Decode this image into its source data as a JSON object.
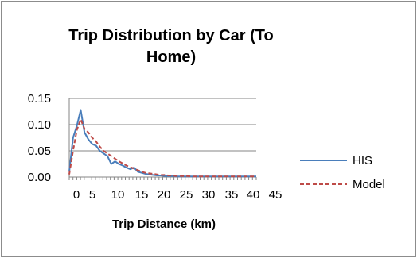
{
  "chart_data": {
    "type": "line",
    "title_lines": [
      "Trip Distribution by Car (To",
      "Home)"
    ],
    "xlabel": "Trip Distance (km)",
    "ylabel": "",
    "x_tick_labels": [
      "0",
      "5",
      "10",
      "15",
      "20",
      "25",
      "30",
      "35",
      "40",
      "45"
    ],
    "y_tick_labels": [
      "0.00",
      "0.05",
      "0.10",
      "0.15"
    ],
    "ylim": [
      0,
      0.15
    ],
    "xlim": [
      0,
      49
    ],
    "grid": "horizontal",
    "legend_position": "right",
    "series": [
      {
        "name": "HIS",
        "color": "#4a7ebb",
        "style": "solid",
        "x": [
          0,
          1,
          2,
          3,
          4,
          5,
          6,
          7,
          8,
          9,
          10,
          11,
          12,
          13,
          14,
          15,
          16,
          17,
          18,
          19,
          20,
          21,
          22,
          23,
          24,
          25,
          26,
          27,
          28,
          29,
          30,
          31,
          32,
          33,
          34,
          35,
          36,
          37,
          38,
          39,
          40,
          41,
          42,
          43,
          44,
          45,
          46,
          47,
          48,
          49
        ],
        "values": [
          0.01,
          0.075,
          0.098,
          0.128,
          0.085,
          0.072,
          0.063,
          0.06,
          0.05,
          0.045,
          0.04,
          0.025,
          0.03,
          0.025,
          0.022,
          0.018,
          0.015,
          0.018,
          0.01,
          0.008,
          0.006,
          0.005,
          0.004,
          0.003,
          0.003,
          0.002,
          0.002,
          0.002,
          0.001,
          0.001,
          0.001,
          0.001,
          0.001,
          0.001,
          0.001,
          0.001,
          0.001,
          0.001,
          0.001,
          0.001,
          0.001,
          0.001,
          0.001,
          0.001,
          0.001,
          0.001,
          0.001,
          0.001,
          0.001,
          0.001
        ]
      },
      {
        "name": "Model",
        "color": "#be4b48",
        "style": "dashed",
        "x": [
          0,
          1,
          2,
          3,
          4,
          5,
          6,
          7,
          8,
          9,
          10,
          11,
          12,
          13,
          14,
          15,
          16,
          17,
          18,
          19,
          20,
          21,
          22,
          23,
          24,
          25,
          26,
          27,
          28,
          29,
          30,
          31,
          32,
          33,
          34,
          35,
          36,
          37,
          38,
          39,
          40,
          41,
          42,
          43,
          44,
          45,
          46,
          47,
          48,
          49
        ],
        "values": [
          0.005,
          0.05,
          0.09,
          0.11,
          0.092,
          0.085,
          0.075,
          0.068,
          0.058,
          0.05,
          0.045,
          0.04,
          0.035,
          0.03,
          0.026,
          0.022,
          0.019,
          0.016,
          0.013,
          0.01,
          0.008,
          0.007,
          0.006,
          0.005,
          0.004,
          0.004,
          0.003,
          0.003,
          0.002,
          0.002,
          0.002,
          0.002,
          0.001,
          0.001,
          0.001,
          0.001,
          0.001,
          0.001,
          0.001,
          0.001,
          0.001,
          0.001,
          0.001,
          0.001,
          0.001,
          0.001,
          0.001,
          0.001,
          0.001,
          0.001
        ]
      }
    ]
  }
}
